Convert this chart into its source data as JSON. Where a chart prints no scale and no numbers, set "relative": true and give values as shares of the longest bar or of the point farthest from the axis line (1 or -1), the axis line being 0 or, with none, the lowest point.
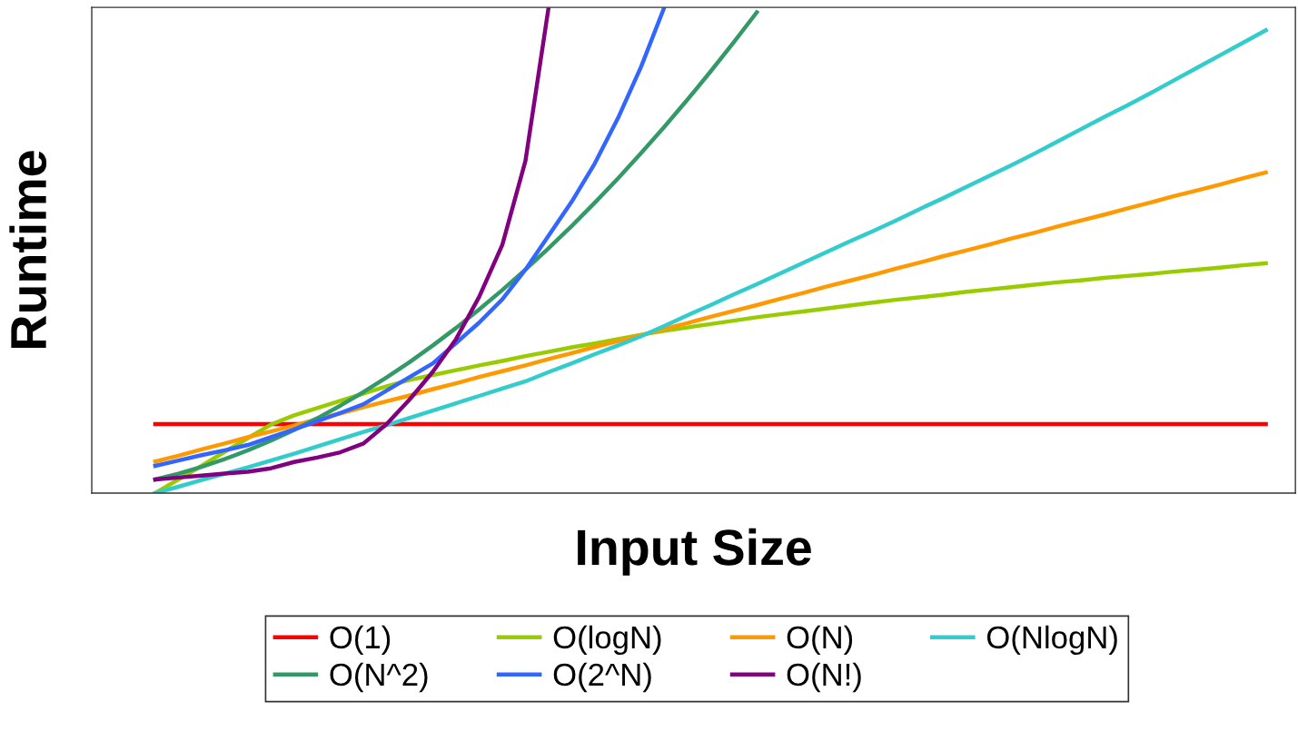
{
  "chart_data": {
    "type": "line",
    "relative": true,
    "xlabel": "Input Size",
    "ylabel": "Runtime",
    "legend": "bottom",
    "marker": "none",
    "line_style": "solid",
    "categories": [
      null,
      null,
      null,
      null,
      null,
      null,
      null,
      null,
      null,
      null,
      null,
      null,
      null,
      null,
      null,
      null,
      null,
      null,
      null,
      null,
      null,
      null,
      null,
      null,
      null,
      null,
      null,
      null,
      null,
      null,
      null,
      null,
      null,
      null,
      null,
      null,
      null,
      null,
      null,
      null,
      null,
      null,
      null,
      null,
      null,
      null,
      null,
      null,
      null
    ],
    "series": [
      {
        "name": "O(1)",
        "color": "#ff0000",
        "values": [
          0.142,
          0.142,
          0.142,
          0.142,
          0.142,
          0.142,
          0.142,
          0.142,
          0.142,
          0.142,
          0.142,
          0.142,
          0.142,
          0.142,
          0.142,
          0.142,
          0.142,
          0.142,
          0.142,
          0.142,
          0.142,
          0.142,
          0.142,
          0.142,
          0.142,
          0.142,
          0.142,
          0.142,
          0.142,
          0.142,
          0.142,
          0.142,
          0.142,
          0.142,
          0.142,
          0.142,
          0.142,
          0.142,
          0.142,
          0.142,
          0.142,
          0.142,
          0.142,
          0.142,
          0.142,
          0.142,
          0.142,
          0.142,
          0.142
        ]
      },
      {
        "name": "O(logN)",
        "color": "#99cc00",
        "values": [
          0,
          0.028,
          0.056,
          0.085,
          0.113,
          0.141,
          0.16,
          0.175,
          0.19,
          0.205,
          0.22,
          0.233,
          0.243,
          0.253,
          0.263,
          0.272,
          0.282,
          0.291,
          0.3,
          0.308,
          0.317,
          0.326,
          0.334,
          0.341,
          0.348,
          0.355,
          0.362,
          0.368,
          0.374,
          0.38,
          0.386,
          0.392,
          0.398,
          0.403,
          0.408,
          0.414,
          0.419,
          0.424,
          0.429,
          0.434,
          0.438,
          0.443,
          0.447,
          0.451,
          0.456,
          0.46,
          0.464,
          0.469,
          0.473
        ]
      },
      {
        "name": "O(N)",
        "color": "#ff9900",
        "values": [
          0.065,
          0.077,
          0.09,
          0.102,
          0.115,
          0.127,
          0.139,
          0.152,
          0.164,
          0.177,
          0.189,
          0.201,
          0.214,
          0.226,
          0.239,
          0.251,
          0.263,
          0.276,
          0.288,
          0.301,
          0.313,
          0.325,
          0.338,
          0.35,
          0.363,
          0.375,
          0.387,
          0.4,
          0.412,
          0.425,
          0.437,
          0.449,
          0.462,
          0.474,
          0.487,
          0.499,
          0.511,
          0.524,
          0.536,
          0.549,
          0.561,
          0.573,
          0.586,
          0.598,
          0.611,
          0.623,
          0.635,
          0.648,
          0.66
        ]
      },
      {
        "name": "O(NlogN)",
        "color": "#33cccc",
        "values": [
          0,
          0.013,
          0.027,
          0.04,
          0.053,
          0.067,
          0.081,
          0.096,
          0.111,
          0.126,
          0.14,
          0.155,
          0.17,
          0.185,
          0.2,
          0.215,
          0.23,
          0.249,
          0.267,
          0.286,
          0.304,
          0.323,
          0.344,
          0.366,
          0.387,
          0.409,
          0.43,
          0.452,
          0.474,
          0.496,
          0.518,
          0.539,
          0.561,
          0.584,
          0.606,
          0.629,
          0.652,
          0.675,
          0.699,
          0.724,
          0.749,
          0.774,
          0.798,
          0.823,
          0.849,
          0.875,
          0.901,
          0.927,
          0.953
        ]
      },
      {
        "name": "O(N^2)",
        "color": "#339966",
        "values": [
          0.028,
          0.04,
          0.054,
          0.07,
          0.088,
          0.108,
          0.13,
          0.154,
          0.18,
          0.208,
          0.238,
          0.27,
          0.304,
          0.34,
          0.378,
          0.418,
          0.46,
          0.504,
          0.55,
          0.598,
          0.648,
          0.7,
          0.754,
          0.81,
          0.868,
          0.928,
          0.99,
          null,
          null,
          null,
          null,
          null,
          null,
          null,
          null,
          null,
          null,
          null,
          null,
          null,
          null,
          null,
          null,
          null,
          null,
          null,
          null,
          null,
          null
        ]
      },
      {
        "name": "O(2^N)",
        "color": "#3366ff",
        "values": [
          0.056,
          0.067,
          0.078,
          0.088,
          0.099,
          0.115,
          0.131,
          0.148,
          0.165,
          0.183,
          0.211,
          0.239,
          0.267,
          0.309,
          0.351,
          0.399,
          0.46,
          0.53,
          0.6,
          0.679,
          0.772,
          0.878,
          1.0,
          null,
          null,
          null,
          null,
          null,
          null,
          null,
          null,
          null,
          null,
          null,
          null,
          null,
          null,
          null,
          null,
          null,
          null,
          null,
          null,
          null,
          null,
          null,
          null,
          null,
          null
        ]
      },
      {
        "name": "O(N!)",
        "color": "#800080",
        "values": [
          0.028,
          0.032,
          0.036,
          0.04,
          0.044,
          0.051,
          0.064,
          0.073,
          0.084,
          0.102,
          0.142,
          0.193,
          0.25,
          0.317,
          0.404,
          0.511,
          0.684,
          1.0,
          null,
          null,
          null,
          null,
          null,
          null,
          null,
          null,
          null,
          null,
          null,
          null,
          null,
          null,
          null,
          null,
          null,
          null,
          null,
          null,
          null,
          null,
          null,
          null,
          null,
          null,
          null,
          null,
          null,
          null,
          null
        ]
      }
    ]
  }
}
